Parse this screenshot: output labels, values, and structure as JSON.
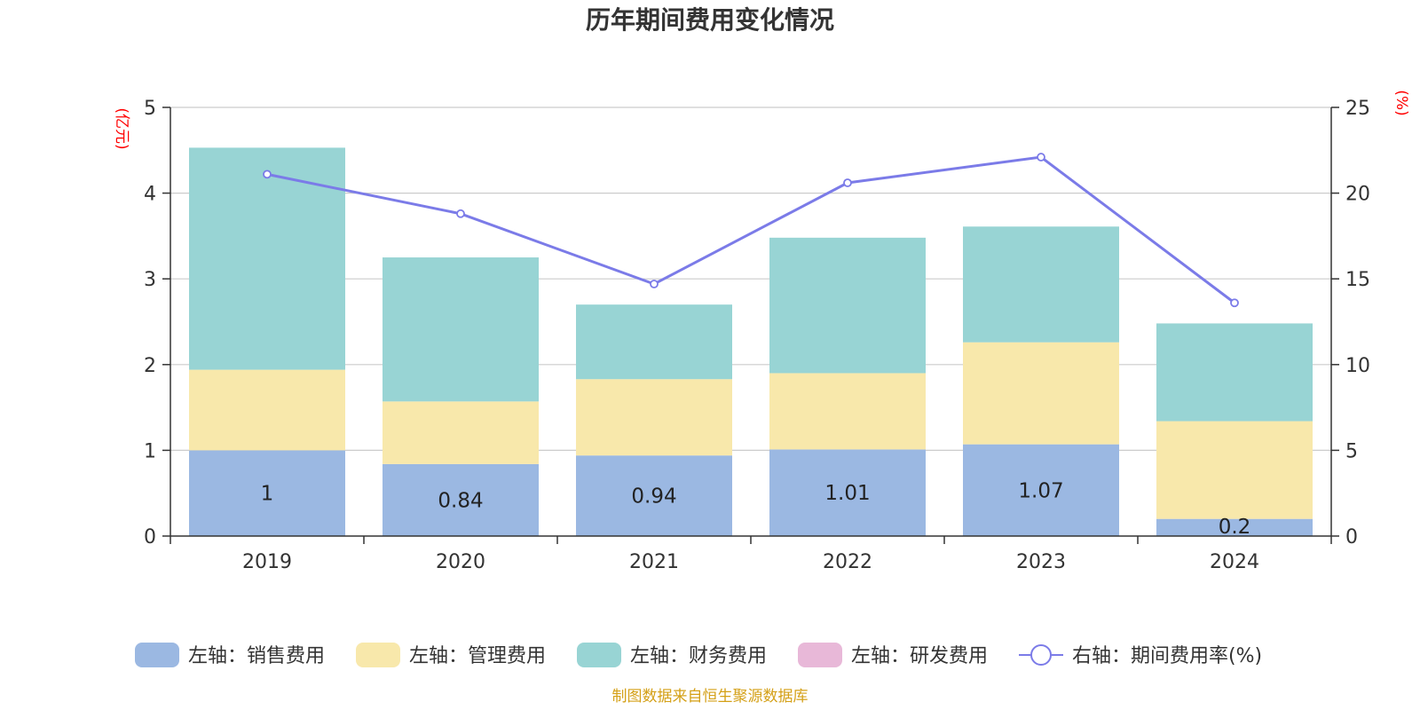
{
  "chart_data": {
    "type": "bar",
    "title": "历年期间费用变化情况",
    "left_axis": {
      "unit": "(亿元)",
      "ylim": [
        0,
        5
      ],
      "ticks": [
        0,
        1,
        2,
        3,
        4,
        5
      ]
    },
    "right_axis": {
      "unit": "(%)",
      "ylim": [
        0,
        25
      ],
      "ticks": [
        0,
        5,
        10,
        15,
        20,
        25
      ]
    },
    "categories": [
      "2019",
      "2020",
      "2021",
      "2022",
      "2023",
      "2024"
    ],
    "series": [
      {
        "name": "左轴：销售费用",
        "kind": "bar",
        "color": "#9bb8e2",
        "values": [
          1.0,
          0.84,
          0.94,
          1.01,
          1.07,
          0.2
        ],
        "labels": [
          "1",
          "0.84",
          "0.94",
          "1.01",
          "1.07",
          "0.2"
        ]
      },
      {
        "name": "左轴：管理费用",
        "kind": "bar",
        "color": "#f8e8ab",
        "values": [
          0.94,
          0.73,
          0.89,
          0.89,
          1.19,
          1.14
        ]
      },
      {
        "name": "左轴：财务费用",
        "kind": "bar",
        "color": "#98d4d4",
        "values": [
          2.59,
          1.68,
          0.87,
          1.58,
          1.35,
          1.14
        ]
      },
      {
        "name": "左轴：研发费用",
        "kind": "bar",
        "color": "#e8b8d8",
        "values": [
          0,
          0,
          0,
          0,
          0,
          0
        ]
      },
      {
        "name": "右轴：期间费用率(%)",
        "kind": "line",
        "axis": "right",
        "color": "#7b7be8",
        "values": [
          21.1,
          18.8,
          14.7,
          20.6,
          22.1,
          13.6
        ]
      }
    ]
  },
  "source": "制图数据来自恒生聚源数据库"
}
